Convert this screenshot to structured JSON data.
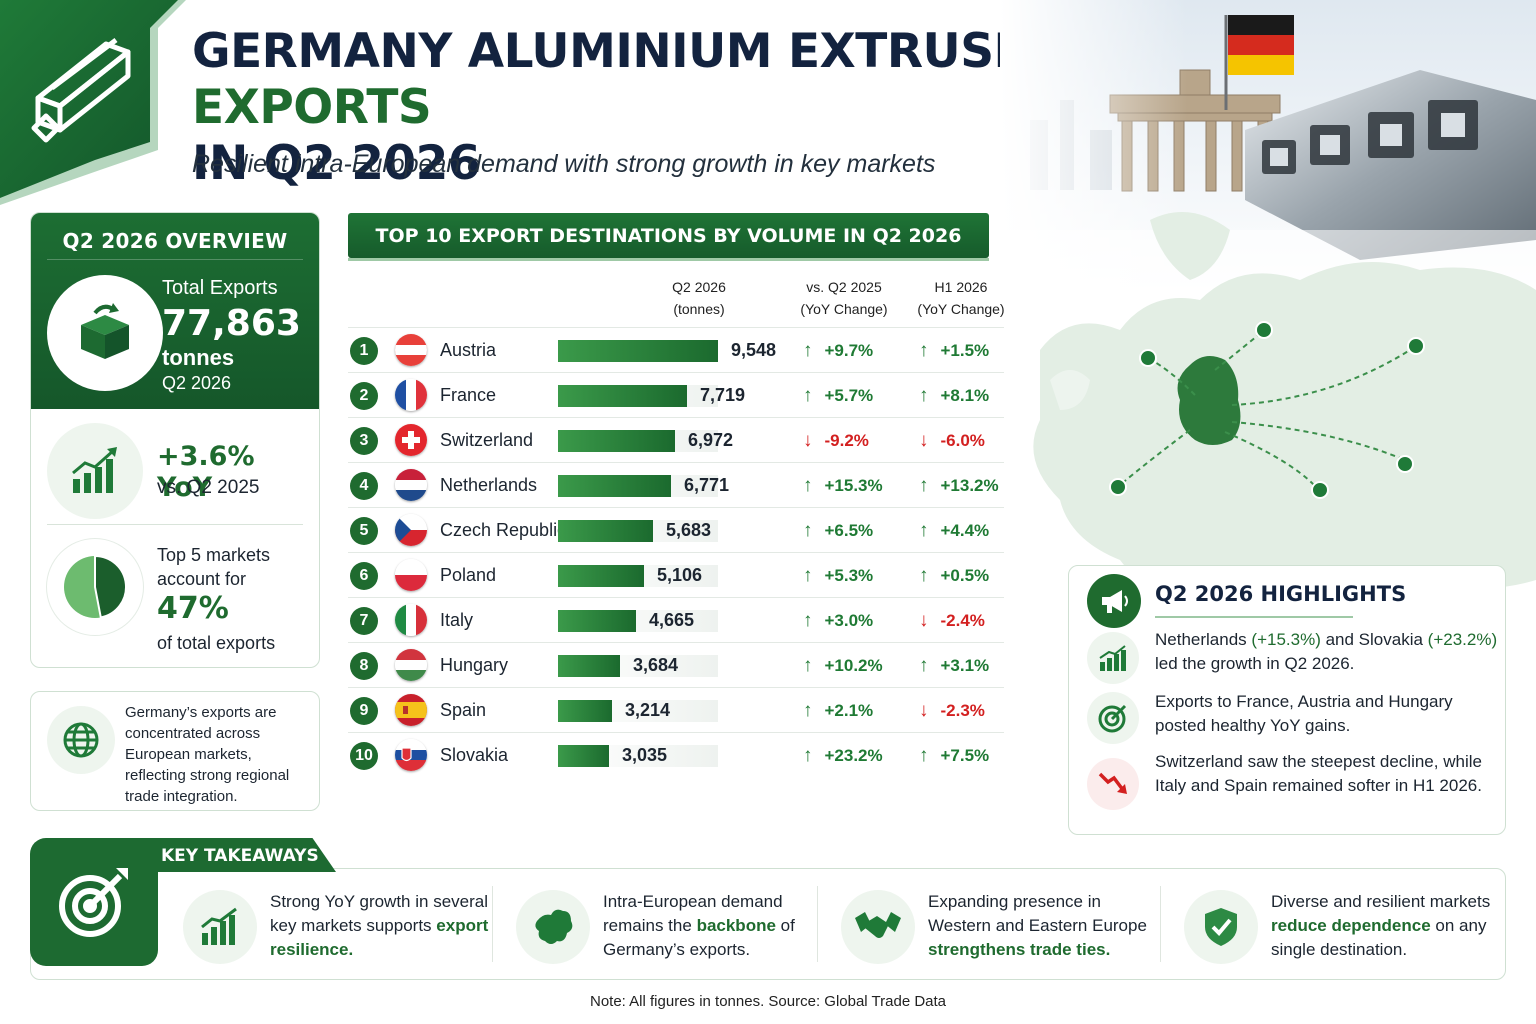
{
  "header": {
    "title_part1": "GERMANY ALUMINIUM EXTRUSION",
    "title_highlight": "EXPORTS",
    "title_part2": "IN Q2 2026",
    "subtitle": "Resilient intra-European demand with strong growth in key markets"
  },
  "overview": {
    "heading": "Q2 2026 OVERVIEW",
    "total_label": "Total Exports",
    "total_value": "77,863",
    "total_unit": "tonnes",
    "total_period": "Q2 2026",
    "yoy_value": "+3.6% YoY",
    "yoy_compare": "vs. Q2 2025",
    "top5_line1": "Top 5 markets",
    "top5_line2": "account for",
    "top5_value": "47%",
    "top5_line3": "of total exports",
    "top5_share": 0.47
  },
  "note_box": {
    "text": "Germany’s exports are concentrated across European markets, reflecting strong regional trade integration."
  },
  "table": {
    "heading": "TOP 10 EXPORT DESTINATIONS BY VOLUME IN Q2 2026",
    "col_volume": [
      "Q2 2026",
      "(tonnes)"
    ],
    "col_yoy": [
      "vs. Q2 2025",
      "(YoY Change)"
    ],
    "col_h1": [
      "H1 2026",
      "(YoY Change)"
    ]
  },
  "chart_data": {
    "type": "bar",
    "orientation": "horizontal",
    "title": "TOP 10 EXPORT DESTINATIONS BY VOLUME IN Q2 2026",
    "unit": "tonnes",
    "xlim": [
      0,
      9548
    ],
    "rows": [
      {
        "rank": "1",
        "country": "Austria",
        "value": 9548,
        "value_label": "9,548",
        "yoy": "+9.7%",
        "yoy_dir": "up",
        "h1": "+1.5%",
        "h1_dir": "up",
        "flag": "austria-flag"
      },
      {
        "rank": "2",
        "country": "France",
        "value": 7719,
        "value_label": "7,719",
        "yoy": "+5.7%",
        "yoy_dir": "up",
        "h1": "+8.1%",
        "h1_dir": "up",
        "flag": "france-flag"
      },
      {
        "rank": "3",
        "country": "Switzerland",
        "value": 6972,
        "value_label": "6,972",
        "yoy": "-9.2%",
        "yoy_dir": "down",
        "h1": "-6.0%",
        "h1_dir": "down",
        "flag": "switzerland-flag"
      },
      {
        "rank": "4",
        "country": "Netherlands",
        "value": 6771,
        "value_label": "6,771",
        "yoy": "+15.3%",
        "yoy_dir": "up",
        "h1": "+13.2%",
        "h1_dir": "up",
        "flag": "netherlands-flag"
      },
      {
        "rank": "5",
        "country": "Czech Republic",
        "value": 5683,
        "value_label": "5,683",
        "yoy": "+6.5%",
        "yoy_dir": "up",
        "h1": "+4.4%",
        "h1_dir": "up",
        "flag": "czech-flag"
      },
      {
        "rank": "6",
        "country": "Poland",
        "value": 5106,
        "value_label": "5,106",
        "yoy": "+5.3%",
        "yoy_dir": "up",
        "h1": "+0.5%",
        "h1_dir": "up",
        "flag": "poland-flag"
      },
      {
        "rank": "7",
        "country": "Italy",
        "value": 4665,
        "value_label": "4,665",
        "yoy": "+3.0%",
        "yoy_dir": "up",
        "h1": "-2.4%",
        "h1_dir": "down",
        "flag": "italy-flag"
      },
      {
        "rank": "8",
        "country": "Hungary",
        "value": 3684,
        "value_label": "3,684",
        "yoy": "+10.2%",
        "yoy_dir": "up",
        "h1": "+3.1%",
        "h1_dir": "up",
        "flag": "hungary-flag"
      },
      {
        "rank": "9",
        "country": "Spain",
        "value": 3214,
        "value_label": "3,214",
        "yoy": "+2.1%",
        "yoy_dir": "up",
        "h1": "-2.3%",
        "h1_dir": "down",
        "flag": "spain-flag"
      },
      {
        "rank": "10",
        "country": "Slovakia",
        "value": 3035,
        "value_label": "3,035",
        "yoy": "+23.2%",
        "yoy_dir": "up",
        "h1": "+7.5%",
        "h1_dir": "up",
        "flag": "slovakia-flag"
      }
    ]
  },
  "highlights": {
    "heading": "Q2 2026 HIGHLIGHTS",
    "item1_a": "Netherlands",
    "item1_b": "(+15.3%)",
    "item1_c": "and Slovakia",
    "item1_d": "(+23.2%)",
    "item1_e": "led the growth in Q2 2026.",
    "item2": "Exports to France, Austria and Hungary posted healthy YoY gains.",
    "item3": "Switzerland saw the steepest decline, while Italy and Spain remained softer in H1 2026."
  },
  "takeaways": {
    "heading": "KEY TAKEAWAYS",
    "t1_a": "Strong YoY growth in several key markets supports",
    "t1_b": "export resilience.",
    "t2_a": "Intra-European demand remains the",
    "t2_b": "backbone",
    "t2_c": "of Germany’s exports.",
    "t3_a": "Expanding presence in Western and Eastern Europe",
    "t3_b": "strengthens trade ties.",
    "t4_a": "Diverse and resilient markets",
    "t4_b": "reduce dependence",
    "t4_c": "on any single destination."
  },
  "footer": {
    "note": "Note: All figures in tonnes. Source: Global Trade Data"
  },
  "colors": {
    "brand_green": "#1f6b2f",
    "up_green": "#1f7a34",
    "down_red": "#d32020",
    "title_navy": "#13233f"
  },
  "icons": [
    "aluminium-profile-icon",
    "box-icon",
    "growth-chart-icon",
    "pie-chart-icon",
    "globe-icon",
    "megaphone-icon",
    "target-icon",
    "decline-icon",
    "europe-map-icon",
    "handshake-icon",
    "shield-check-icon"
  ]
}
